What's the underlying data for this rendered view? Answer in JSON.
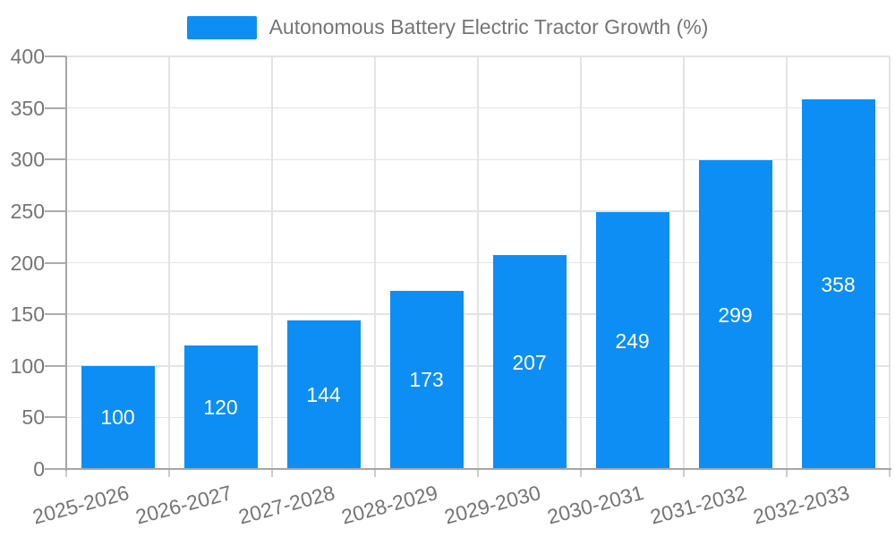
{
  "chart_data": {
    "type": "bar",
    "title": "",
    "legend": {
      "label": "Autonomous Battery Electric Tractor Growth (%)",
      "position": "top-center"
    },
    "categories": [
      "2025-2026",
      "2026-2027",
      "2027-2028",
      "2028-2029",
      "2029-2030",
      "2030-2031",
      "2031-2032",
      "2032-2033"
    ],
    "series": [
      {
        "name": "Autonomous Battery Electric Tractor Growth (%)",
        "values": [
          100,
          120,
          144,
          173,
          207,
          249,
          299,
          358
        ]
      }
    ],
    "xlabel": "",
    "ylabel": "",
    "ylim": [
      0,
      400
    ],
    "ytick_step": 50,
    "yticks": [
      0,
      50,
      100,
      150,
      200,
      250,
      300,
      350,
      400
    ],
    "grid": true,
    "x_label_rotation_deg": -15,
    "colors": {
      "bar": "#0d8ef4",
      "bar_value_label": "#ffffff",
      "axis_text": "#757575",
      "gridline": "#e3e3e3",
      "axis_line": "#a6a6a6",
      "y_tick": "#ababab",
      "x_tick": "#cccccc",
      "background": "#ffffff"
    }
  }
}
